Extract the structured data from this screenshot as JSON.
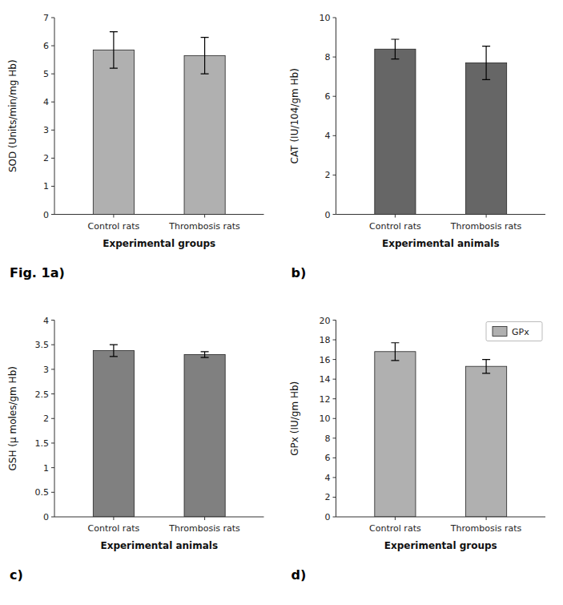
{
  "chart_data": [
    {
      "type": "bar",
      "title": "Fig. 1a)",
      "categories": [
        "Control rats",
        "Thrombosis rats"
      ],
      "values": [
        5.85,
        5.65
      ],
      "errors": [
        0.65,
        0.65
      ],
      "color": "#b0b0b0",
      "xlabel": "Experimental groups",
      "ylabel": "SOD (Units/min/mg Hb)",
      "ylim": [
        0,
        7
      ],
      "yticks": [
        0,
        1,
        2,
        3,
        4,
        5,
        6,
        7
      ]
    },
    {
      "type": "bar",
      "title": "b)",
      "categories": [
        "Control rats",
        "Thrombosis rats"
      ],
      "values": [
        8.4,
        7.7
      ],
      "errors": [
        0.5,
        0.85
      ],
      "color": "#666666",
      "xlabel": "Experimental animals",
      "ylabel": "CAT (IU/104/gm Hb)",
      "ylim": [
        0,
        10
      ],
      "yticks": [
        0,
        2,
        4,
        6,
        8,
        10
      ]
    },
    {
      "type": "bar",
      "title": "c)",
      "categories": [
        "Control rats",
        "Thrombosis rats"
      ],
      "values": [
        3.38,
        3.3
      ],
      "errors": [
        0.12,
        0.06
      ],
      "color": "#808080",
      "xlabel": "Experimental animals",
      "ylabel": "GSH (μ moles/gm Hb)",
      "ylim": [
        0,
        4
      ],
      "yticks": [
        0,
        0.5,
        1,
        1.5,
        2,
        2.5,
        3,
        3.5,
        4
      ]
    },
    {
      "type": "bar",
      "title": "d)",
      "categories": [
        "Control rats",
        "Thrombosis rats"
      ],
      "series": [
        {
          "name": "GPx",
          "color": "#b0b0b0",
          "values": [
            16.8,
            15.3
          ],
          "errors": [
            0.9,
            0.7
          ]
        }
      ],
      "legend": "upper right",
      "xlabel": "Experimental groups",
      "ylabel": "GPx (IU/gm Hb)",
      "ylim": [
        0,
        20
      ],
      "yticks": [
        0,
        2,
        4,
        6,
        8,
        10,
        12,
        14,
        16,
        18,
        20
      ]
    }
  ]
}
